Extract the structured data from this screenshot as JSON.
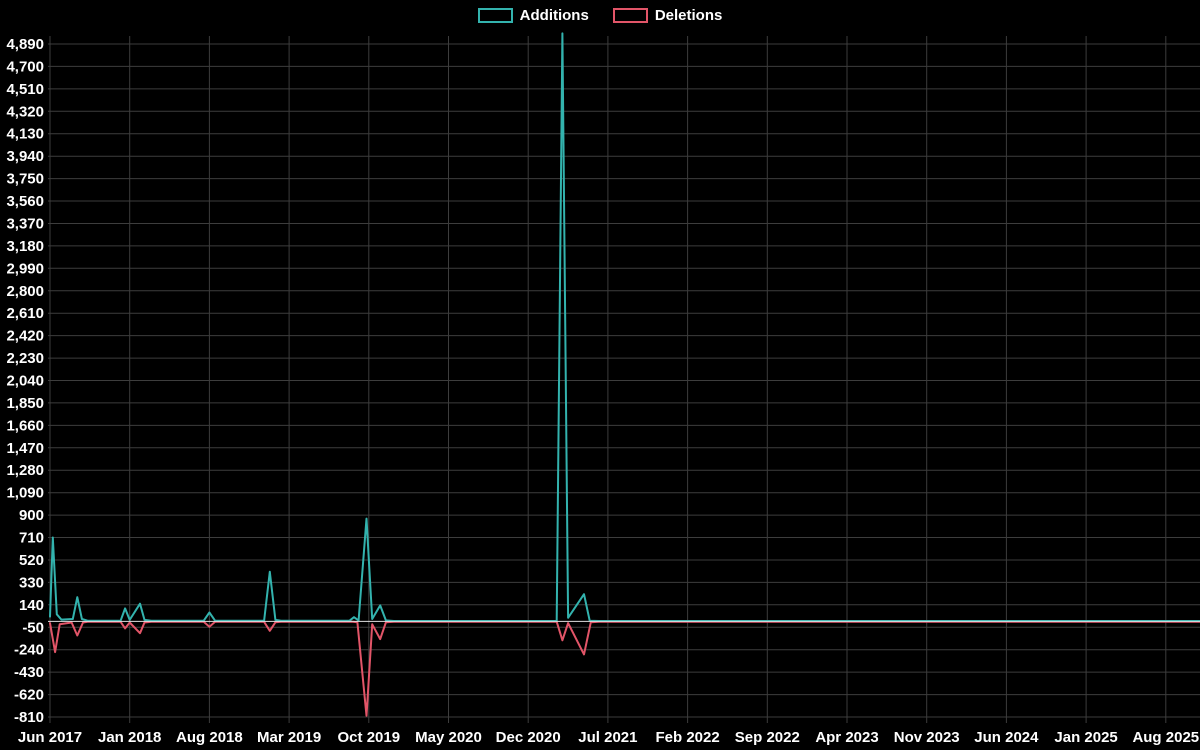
{
  "chart": {
    "legend": {
      "items": [
        {
          "label": "Additions",
          "color": "#33b3ae"
        },
        {
          "label": "Deletions",
          "color": "#e25568"
        }
      ]
    }
  },
  "chart_data": {
    "type": "line",
    "background_color": "#000000",
    "grid_color": "#3d3d3d",
    "zero_line_color": "#e0e0e0",
    "text_color": "#ffffff",
    "legend_position": "top-center",
    "grid": true,
    "x_axis": {
      "unit": "months since Jun 2017",
      "tick_labels": [
        "Jun 2017",
        "Jan 2018",
        "Aug 2018",
        "Mar 2019",
        "Oct 2019",
        "May 2020",
        "Dec 2020",
        "Jul 2021",
        "Feb 2022",
        "Sep 2022",
        "Apr 2023",
        "Nov 2023",
        "Jun 2024",
        "Jan 2025",
        "Aug 2025"
      ],
      "tick_positions_months": [
        0,
        7,
        14,
        21,
        28,
        35,
        42,
        49,
        56,
        63,
        70,
        77,
        84,
        91,
        98
      ],
      "domain_months": [
        0,
        101
      ]
    },
    "y_axis": {
      "min": -810,
      "max": 4890,
      "step": 190,
      "tick_labels": [
        "4,890",
        "4,700",
        "4,510",
        "4,320",
        "4,130",
        "3,940",
        "3,750",
        "3,560",
        "3,370",
        "3,180",
        "2,990",
        "2,800",
        "2,610",
        "2,420",
        "2,230",
        "2,040",
        "1,850",
        "1,660",
        "1,470",
        "1,280",
        "1,090",
        "900",
        "710",
        "520",
        "330",
        "140",
        "-50",
        "-240",
        "-430",
        "-620",
        "-810"
      ]
    },
    "series": [
      {
        "name": "Additions",
        "color": "#33b3ae",
        "points_month_value": [
          [
            0,
            40
          ],
          [
            0.25,
            710
          ],
          [
            0.6,
            60
          ],
          [
            1.0,
            15
          ],
          [
            2.0,
            20
          ],
          [
            2.4,
            205
          ],
          [
            2.8,
            20
          ],
          [
            3.3,
            6
          ],
          [
            6.2,
            6
          ],
          [
            6.6,
            110
          ],
          [
            7.0,
            12
          ],
          [
            7.9,
            150
          ],
          [
            8.3,
            12
          ],
          [
            8.9,
            6
          ],
          [
            13.5,
            6
          ],
          [
            14.0,
            75
          ],
          [
            14.5,
            6
          ],
          [
            18.8,
            6
          ],
          [
            19.3,
            420
          ],
          [
            19.8,
            12
          ],
          [
            20.3,
            6
          ],
          [
            26.3,
            6
          ],
          [
            26.7,
            35
          ],
          [
            27.1,
            8
          ],
          [
            27.8,
            870
          ],
          [
            28.3,
            20
          ],
          [
            29.0,
            135
          ],
          [
            29.5,
            8
          ],
          [
            30.2,
            3
          ],
          [
            44.5,
            3
          ],
          [
            45.0,
            4980
          ],
          [
            45.5,
            30
          ],
          [
            46.9,
            230
          ],
          [
            47.4,
            6
          ],
          [
            48.2,
            3
          ],
          [
            101,
            3
          ]
        ]
      },
      {
        "name": "Deletions",
        "color": "#e25568",
        "points_month_value": [
          [
            0,
            -15
          ],
          [
            0.45,
            -260
          ],
          [
            0.85,
            -25
          ],
          [
            1.9,
            -10
          ],
          [
            2.4,
            -120
          ],
          [
            2.9,
            -10
          ],
          [
            3.3,
            -4
          ],
          [
            6.2,
            -4
          ],
          [
            6.6,
            -60
          ],
          [
            7.0,
            -10
          ],
          [
            7.9,
            -100
          ],
          [
            8.3,
            -10
          ],
          [
            8.9,
            -4
          ],
          [
            13.5,
            -4
          ],
          [
            14.0,
            -45
          ],
          [
            14.5,
            -4
          ],
          [
            18.8,
            -4
          ],
          [
            19.3,
            -80
          ],
          [
            19.8,
            -8
          ],
          [
            20.3,
            -4
          ],
          [
            26.6,
            -4
          ],
          [
            27.0,
            -8
          ],
          [
            27.8,
            -800
          ],
          [
            28.3,
            -25
          ],
          [
            29.0,
            -150
          ],
          [
            29.5,
            -8
          ],
          [
            30.2,
            -3
          ],
          [
            44.5,
            -3
          ],
          [
            45.0,
            -160
          ],
          [
            45.5,
            -15
          ],
          [
            46.9,
            -280
          ],
          [
            47.5,
            -8
          ],
          [
            48.2,
            -3
          ],
          [
            101,
            -3
          ]
        ]
      }
    ]
  }
}
